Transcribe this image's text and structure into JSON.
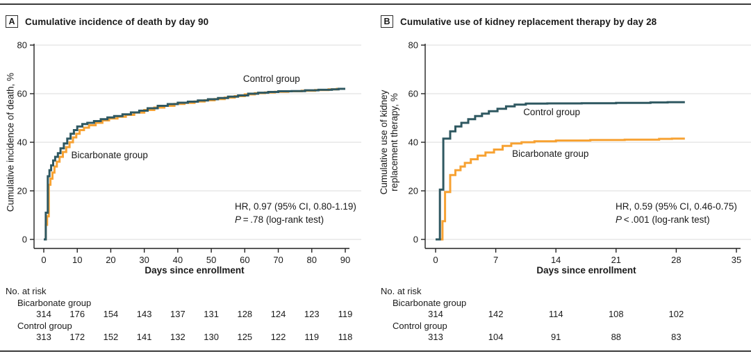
{
  "colors": {
    "control": "#2F5861",
    "bicarbonate": "#F7A233",
    "axis": "#222222",
    "grid": "#DBDBDB",
    "text": "#1A1A1A",
    "rule": "#3A3A3A"
  },
  "panels": [
    {
      "label": "A",
      "title": "Cumulative incidence of death by day 90",
      "ylabel_line1": "Cumulative incidence of death, %",
      "ylabel_line2": "",
      "xlabel": "Days since enrollment",
      "annotation": {
        "hr": "HR, 0.97 (95% CI, 0.80-1.19)",
        "p_italic": "P",
        "p_rest": " = .78 (log-rank test)"
      },
      "at_risk_title": "No. at risk",
      "risk_group_1": "Bicarbonate group",
      "risk_group_2": "Control group"
    },
    {
      "label": "B",
      "title": "Cumulative use of kidney replacement therapy by day 28",
      "ylabel_line1": "Cumulative use of kidney",
      "ylabel_line2": "replacement therapy, %",
      "xlabel": "Days since enrollment",
      "annotation": {
        "hr": "HR, 0.59 (95% CI, 0.46-0.75)",
        "p_italic": "P",
        "p_rest": " < .001 (log-rank test)"
      },
      "at_risk_title": "No. at risk",
      "risk_group_1": "Bicarbonate group",
      "risk_group_2": "Control group"
    }
  ],
  "chart_data": [
    {
      "type": "line",
      "step": true,
      "panel": "A",
      "title": "Cumulative incidence of death by day 90",
      "xlabel": "Days since enrollment",
      "ylabel": "Cumulative incidence of death, %",
      "xlim": [
        0,
        90
      ],
      "xticks": [
        0,
        10,
        20,
        30,
        40,
        50,
        60,
        70,
        80,
        90
      ],
      "ylim": [
        0,
        80
      ],
      "yticks": [
        0,
        20,
        40,
        60,
        80
      ],
      "grid": "horizontal",
      "legend_position": "inline-labels",
      "annotation_text": [
        "HR, 0.97 (95% CI, 0.80-1.19)",
        "P=.78 (log-rank test)"
      ],
      "series": [
        {
          "name": "Bicarbonate group",
          "color": "#F7A233",
          "label_pos": [
            8.2,
            33.5
          ],
          "points": [
            [
              0,
              0
            ],
            [
              0.6,
              6
            ],
            [
              1,
              9.5
            ],
            [
              1.5,
              22.5
            ],
            [
              2,
              25
            ],
            [
              2.6,
              27.5
            ],
            [
              3.2,
              30
            ],
            [
              3.9,
              32
            ],
            [
              4.7,
              34
            ],
            [
              5.7,
              36
            ],
            [
              6.7,
              38
            ],
            [
              7.7,
              40
            ],
            [
              8.7,
              42
            ],
            [
              9.7,
              43.5
            ],
            [
              10.7,
              45
            ],
            [
              12,
              46
            ],
            [
              13.5,
              47
            ],
            [
              15.5,
              48
            ],
            [
              17.5,
              49
            ],
            [
              19.5,
              49.8
            ],
            [
              22,
              50.5
            ],
            [
              24.5,
              51.3
            ],
            [
              27,
              52.2
            ],
            [
              30,
              53.3
            ],
            [
              33,
              54.3
            ],
            [
              36,
              55
            ],
            [
              39,
              55.8
            ],
            [
              42,
              56.2
            ],
            [
              45,
              56.8
            ],
            [
              48,
              57.3
            ],
            [
              51,
              57.8
            ],
            [
              54,
              58.4
            ],
            [
              57,
              59
            ],
            [
              60,
              59.7
            ],
            [
              63,
              60.2
            ],
            [
              66,
              60.5
            ],
            [
              69,
              60.8
            ],
            [
              73,
              61
            ],
            [
              77,
              61.2
            ],
            [
              81,
              61.5
            ],
            [
              85,
              61.8
            ],
            [
              87.5,
              62
            ],
            [
              90,
              62
            ]
          ]
        },
        {
          "name": "Control group",
          "color": "#2F5861",
          "label_pos": [
            59.5,
            64.8
          ],
          "points": [
            [
              0,
              0
            ],
            [
              0.6,
              11
            ],
            [
              1.2,
              26
            ],
            [
              1.7,
              28.5
            ],
            [
              2.2,
              30.5
            ],
            [
              2.8,
              32.5
            ],
            [
              3.4,
              34
            ],
            [
              4.2,
              35.5
            ],
            [
              5,
              37.5
            ],
            [
              6,
              39.5
            ],
            [
              7,
              41.5
            ],
            [
              8,
              43.5
            ],
            [
              9,
              45
            ],
            [
              10,
              46.5
            ],
            [
              11.5,
              47.5
            ],
            [
              13,
              48
            ],
            [
              15,
              48.7
            ],
            [
              17,
              49.5
            ],
            [
              19,
              50.2
            ],
            [
              21,
              50.8
            ],
            [
              23.5,
              51.5
            ],
            [
              26,
              52.3
            ],
            [
              28.5,
              53
            ],
            [
              31,
              54
            ],
            [
              34,
              55
            ],
            [
              37,
              55.7
            ],
            [
              40,
              56.3
            ],
            [
              43,
              56.7
            ],
            [
              46,
              57.2
            ],
            [
              49,
              57.7
            ],
            [
              52,
              58.2
            ],
            [
              55,
              58.8
            ],
            [
              58,
              59.3
            ],
            [
              61,
              60
            ],
            [
              64,
              60.4
            ],
            [
              67,
              60.7
            ],
            [
              70,
              61
            ],
            [
              74,
              61.1
            ],
            [
              78,
              61.4
            ],
            [
              82,
              61.6
            ],
            [
              86,
              61.8
            ],
            [
              88,
              62
            ],
            [
              90,
              62
            ]
          ]
        }
      ],
      "at_risk": {
        "title": "No. at risk",
        "x": [
          0,
          10,
          20,
          30,
          40,
          50,
          60,
          70,
          80,
          90
        ],
        "rows": [
          {
            "name": "Bicarbonate group",
            "values": [
              314,
              176,
              154,
              143,
              137,
              131,
              128,
              124,
              123,
              119
            ]
          },
          {
            "name": "Control group",
            "values": [
              313,
              172,
              152,
              141,
              132,
              130,
              125,
              122,
              119,
              118
            ]
          }
        ]
      }
    },
    {
      "type": "line",
      "step": true,
      "panel": "B",
      "title": "Cumulative use of kidney replacement therapy by day 28",
      "xlabel": "Days since enrollment",
      "ylabel": "Cumulative use of kidney replacement therapy, %",
      "xlim": [
        0,
        35
      ],
      "xticks": [
        0,
        7,
        14,
        21,
        28,
        35
      ],
      "ylim": [
        0,
        80
      ],
      "yticks": [
        0,
        20,
        40,
        60,
        80
      ],
      "grid": "horizontal",
      "legend_position": "inline-labels",
      "annotation_text": [
        "HR, 0.59 (95% CI, 0.46-0.75)",
        "P<.001 (log-rank test)"
      ],
      "series": [
        {
          "name": "Bicarbonate group",
          "color": "#F7A233",
          "label_pos": [
            8.9,
            34
          ],
          "points": [
            [
              0,
              0
            ],
            [
              0.8,
              7.5
            ],
            [
              1.1,
              19.5
            ],
            [
              1.7,
              26.5
            ],
            [
              2.3,
              28.5
            ],
            [
              2.9,
              30
            ],
            [
              3.4,
              31.5
            ],
            [
              4.1,
              33
            ],
            [
              4.9,
              34.5
            ],
            [
              5.8,
              35.8
            ],
            [
              6.8,
              37
            ],
            [
              7.8,
              38.5
            ],
            [
              8.8,
              39.5
            ],
            [
              10,
              40
            ],
            [
              11.5,
              40.4
            ],
            [
              14,
              40.7
            ],
            [
              18,
              40.9
            ],
            [
              22,
              41.1
            ],
            [
              26,
              41.4
            ],
            [
              27.5,
              41.5
            ],
            [
              29,
              41.5
            ]
          ]
        },
        {
          "name": "Control group",
          "color": "#2F5861",
          "label_pos": [
            10.2,
            51.2
          ],
          "points": [
            [
              0,
              0
            ],
            [
              0.5,
              20.5
            ],
            [
              0.9,
              41.5
            ],
            [
              1.7,
              44.5
            ],
            [
              2.3,
              46.5
            ],
            [
              3,
              48
            ],
            [
              3.8,
              49.5
            ],
            [
              4.6,
              50.8
            ],
            [
              5.4,
              51.8
            ],
            [
              6.2,
              52.8
            ],
            [
              7.2,
              53.8
            ],
            [
              8.2,
              54.8
            ],
            [
              9.2,
              55.5
            ],
            [
              10.5,
              55.9
            ],
            [
              13,
              56
            ],
            [
              17,
              56.1
            ],
            [
              21,
              56.2
            ],
            [
              25,
              56.4
            ],
            [
              27,
              56.5
            ],
            [
              29,
              56.5
            ]
          ]
        }
      ],
      "at_risk": {
        "title": "No. at risk",
        "x": [
          0,
          7,
          14,
          21,
          28
        ],
        "rows": [
          {
            "name": "Bicarbonate group",
            "values": [
              314,
              142,
              114,
              108,
              102
            ]
          },
          {
            "name": "Control group",
            "values": [
              313,
              104,
              91,
              88,
              83
            ]
          }
        ]
      }
    }
  ]
}
